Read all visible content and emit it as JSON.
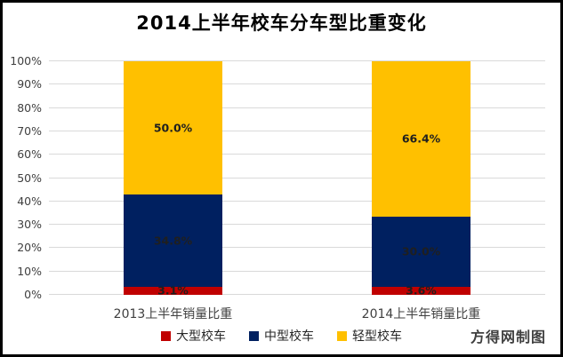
{
  "title": "2014上半年校车分车型比重变化",
  "credit": "方得网制图",
  "colors": {
    "grid": "#d9d9d9",
    "border": "#000000",
    "background": "#ffffff",
    "tick_text": "#404040",
    "label_text": "#1f1f1f"
  },
  "chart_data": {
    "type": "bar",
    "subtype": "100-percent-stacked-column",
    "title": "2014上半年校车分车型比重变化",
    "categories": [
      "2013上半年销量比重",
      "2014上半年销量比重"
    ],
    "series": [
      {
        "name": "大型校车",
        "color": "#c00000",
        "values": [
          3.1,
          3.6
        ],
        "labels": [
          "3.1%",
          "3.6%"
        ]
      },
      {
        "name": "中型校车",
        "color": "#002060",
        "values": [
          34.8,
          30.0
        ],
        "labels": [
          "34.8%",
          "30.0%"
        ]
      },
      {
        "name": "轻型校车",
        "color": "#ffc000",
        "values": [
          50.0,
          66.4
        ],
        "labels": [
          "50.0%",
          "66.4%"
        ]
      }
    ],
    "xlabel": "",
    "ylabel": "",
    "ylim": [
      0,
      100
    ],
    "y_ticks": [
      "0%",
      "10%",
      "20%",
      "30%",
      "40%",
      "50%",
      "60%",
      "70%",
      "80%",
      "90%",
      "100%"
    ],
    "grid": true,
    "legend_position": "bottom",
    "annotation": "方得网制图"
  }
}
